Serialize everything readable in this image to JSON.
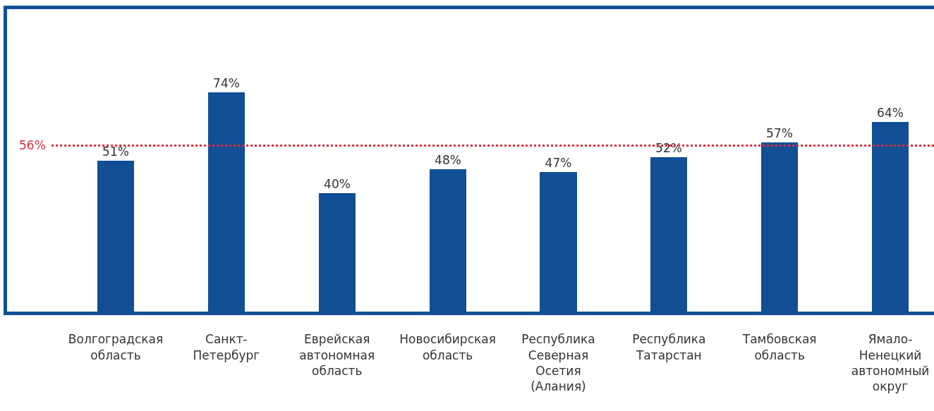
{
  "chart_data": {
    "type": "bar",
    "categories": [
      "Волгоградская область",
      "Санкт-Петербург",
      "Еврейская автономная область",
      "Новосибирская область",
      "Республика Северная Осетия (Алания)",
      "Республика Татарстан",
      "Тамбовская область",
      "Ямало-Ненецкий автономный округ"
    ],
    "values": [
      51,
      74,
      40,
      48,
      47,
      52,
      57,
      64
    ],
    "value_labels": [
      "51%",
      "74%",
      "40%",
      "48%",
      "47%",
      "52%",
      "57%",
      "64%"
    ],
    "color": "#114e95",
    "ylim": [
      0,
      102
    ],
    "tick_labels": "x",
    "ref_lines": [
      {
        "axis": "y",
        "value": 56,
        "label": "56%",
        "color": "#d9303b",
        "line_style": "dotted"
      }
    ]
  }
}
